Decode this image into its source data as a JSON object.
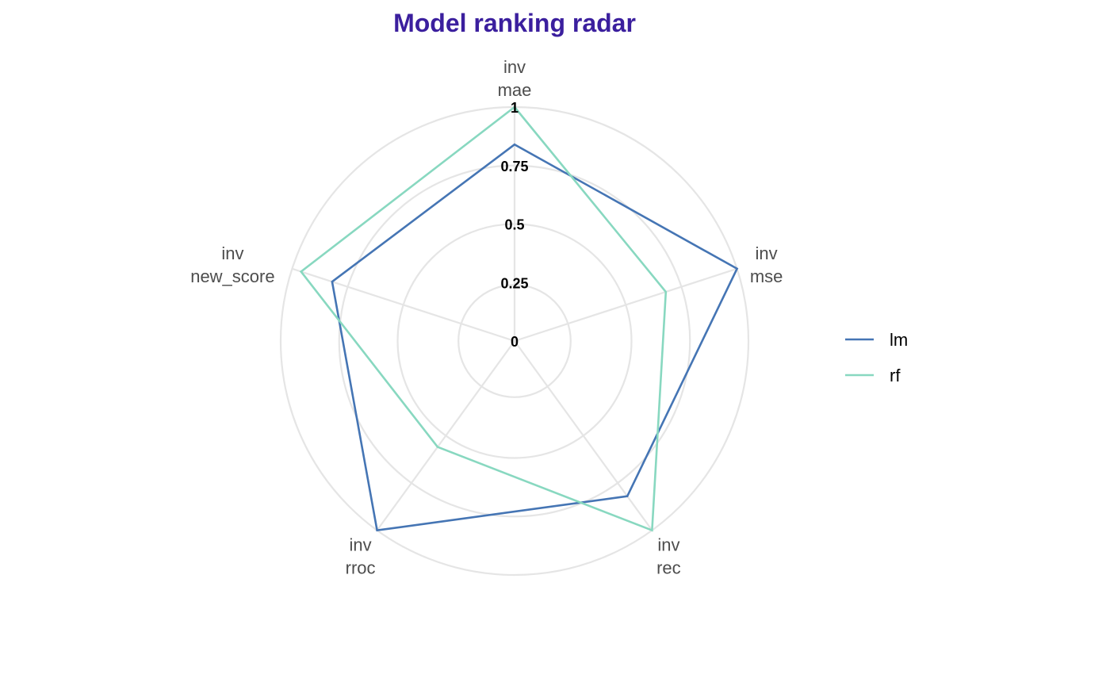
{
  "chart_data": {
    "type": "radar",
    "title": "Model ranking radar",
    "axes": [
      {
        "line1": "inv",
        "line2": "mae"
      },
      {
        "line1": "inv",
        "line2": "mse"
      },
      {
        "line1": "inv",
        "line2": "rec"
      },
      {
        "line1": "inv",
        "line2": "rroc"
      },
      {
        "line1": "inv",
        "line2": "new_score"
      }
    ],
    "radial_ticks": [
      "0",
      "0.25",
      "0.5",
      "0.75",
      "1"
    ],
    "rlim": [
      0,
      1
    ],
    "grid": true,
    "legend_position": "right",
    "series": [
      {
        "name": "lm",
        "color": "#4575b4",
        "values": [
          0.84,
          1.0,
          0.82,
          1.0,
          0.82
        ]
      },
      {
        "name": "rf",
        "color": "#88d8c0",
        "values": [
          1.0,
          0.68,
          1.0,
          0.56,
          0.96
        ]
      }
    ]
  },
  "colors": {
    "title": "#3b1f9e",
    "grid": "#e5e5e5"
  }
}
